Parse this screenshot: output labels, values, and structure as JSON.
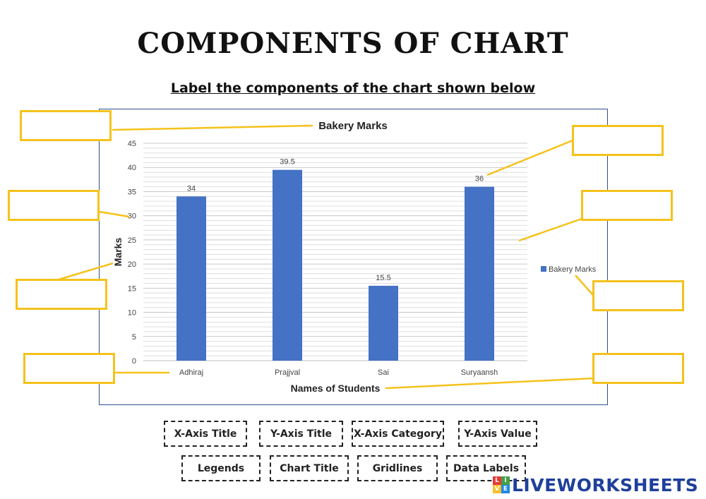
{
  "page": {
    "title": "COMPONENTS OF CHART",
    "instruction": "Label the components of the chart shown below"
  },
  "chart_data": {
    "type": "bar",
    "title": "Bakery Marks",
    "categories": [
      "Adhiraj",
      "Prajjval",
      "Sai",
      "Suryaansh"
    ],
    "series": [
      {
        "name": "Bakery Marks",
        "values": [
          34,
          39.5,
          15.5,
          36
        ]
      }
    ],
    "data_labels": [
      "34",
      "39.5",
      "15.5",
      "36"
    ],
    "xlabel": "Names of Students",
    "ylabel": "Marks",
    "ylim": [
      0,
      45
    ],
    "yticks": [
      "0",
      "5",
      "10",
      "15",
      "20",
      "25",
      "30",
      "35",
      "40",
      "45"
    ],
    "grid": true,
    "legend": "right",
    "bar_color": "#4472c4"
  },
  "choices": [
    {
      "id": "x-axis-title",
      "label": "X-Axis Title"
    },
    {
      "id": "y-axis-title",
      "label": "Y-Axis Title"
    },
    {
      "id": "x-axis-category",
      "label": "X-Axis Category"
    },
    {
      "id": "y-axis-value",
      "label": "Y-Axis Value"
    },
    {
      "id": "legends",
      "label": "Legends"
    },
    {
      "id": "chart-title",
      "label": "Chart Title"
    },
    {
      "id": "gridlines",
      "label": "Gridlines"
    },
    {
      "id": "data-labels",
      "label": "Data Labels"
    }
  ],
  "colors": {
    "answer_box_border": "#f5c21b",
    "leader_line": "#f5c21b",
    "frame": "#2f4f8f"
  },
  "brand": {
    "name": "LIVEWORKSHEETS",
    "logo_letters": [
      "L",
      "I",
      "V",
      "E"
    ],
    "logo_colors": [
      "#e53935",
      "#43a047",
      "#fbc02d",
      "#1e88e5"
    ]
  }
}
